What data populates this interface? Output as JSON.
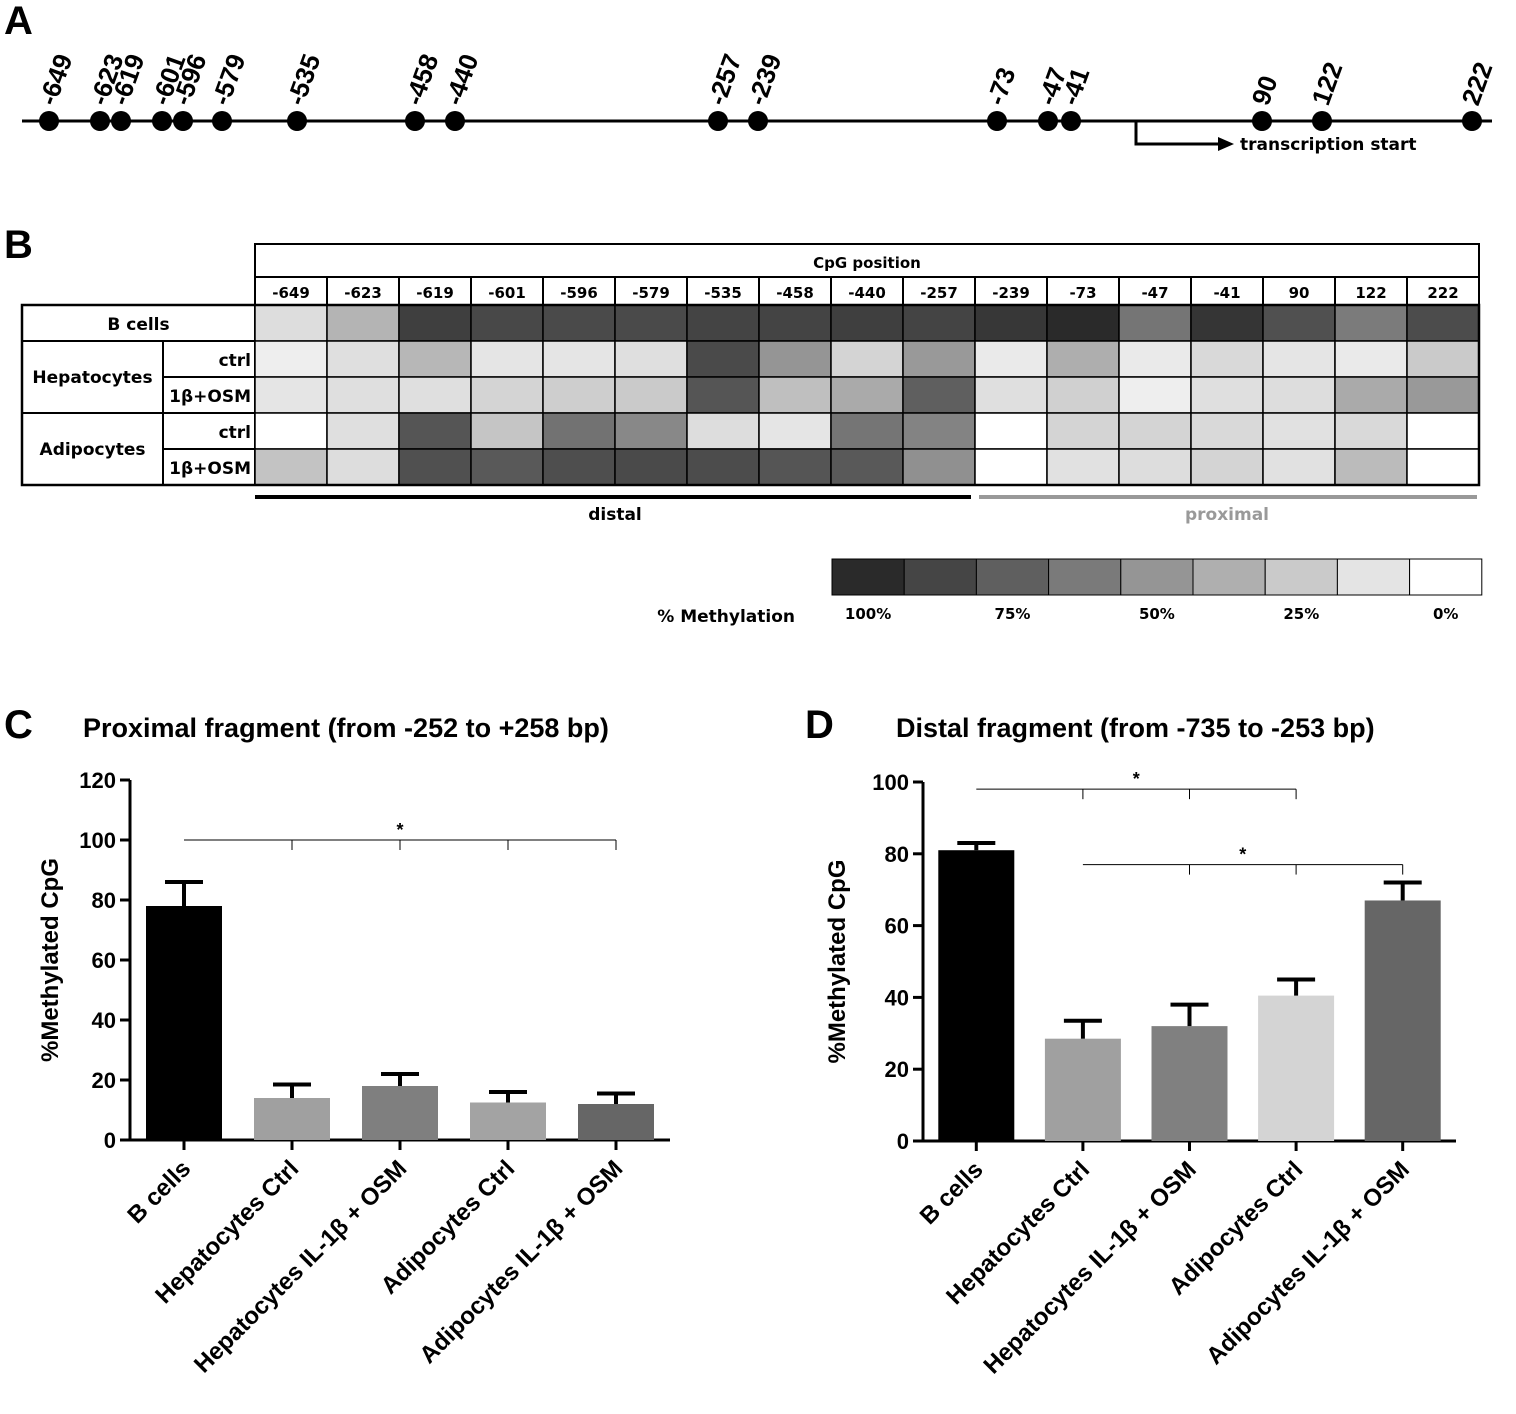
{
  "panel_a": {
    "letter": "A",
    "positions": [
      -649,
      -623,
      -619,
      -601,
      -596,
      -579,
      -535,
      -458,
      -440,
      -257,
      -239,
      -73,
      -47,
      -41,
      90,
      122,
      222
    ],
    "transcription_label": "transcription start"
  },
  "panel_b": {
    "letter": "B",
    "header": "CpG position",
    "columns": [
      "-649",
      "-623",
      "-619",
      "-601",
      "-596",
      "-579",
      "-535",
      "-458",
      "-440",
      "-257",
      "-239",
      "-73",
      "-47",
      "-41",
      "90",
      "122",
      "222"
    ],
    "groups": [
      {
        "label": "B cells",
        "rows": [
          {
            "label": "",
            "methylation": [
              16,
              35,
              90,
              86,
              85,
              85,
              88,
              88,
              90,
              88,
              94,
              100,
              65,
              95,
              82,
              62,
              84
            ]
          }
        ]
      },
      {
        "label": "Hepatocytes",
        "rows": [
          {
            "label": "ctrl",
            "methylation": [
              8,
              15,
              34,
              12,
              12,
              15,
              85,
              50,
              20,
              48,
              10,
              38,
              10,
              18,
              12,
              10,
              25
            ]
          },
          {
            "label": "1β+OSM",
            "methylation": [
              12,
              15,
              15,
              20,
              23,
              25,
              80,
              30,
              40,
              75,
              15,
              22,
              8,
              15,
              16,
              40,
              48
            ]
          }
        ]
      },
      {
        "label": "Adipocytes",
        "rows": [
          {
            "label": "ctrl",
            "methylation": [
              0,
              15,
              80,
              27,
              66,
              56,
              16,
              12,
              65,
              58,
              0,
              20,
              20,
              18,
              14,
              18,
              0
            ]
          },
          {
            "label": "1β+OSM",
            "methylation": [
              28,
              16,
              82,
              78,
              83,
              85,
              84,
              80,
              78,
              52,
              0,
              14,
              16,
              20,
              14,
              32,
              0
            ]
          }
        ]
      }
    ],
    "distal_label": "distal",
    "proximal_label": "proximal",
    "legend_title": "% Methylation",
    "legend_ticks": [
      "100%",
      "75%",
      "50%",
      "25%",
      "0%"
    ],
    "colors": {
      "proximal": "#999999",
      "distal": "#000000",
      "grid": "#000000"
    }
  },
  "chart_data": [
    {
      "letter": "C",
      "type": "bar",
      "title": "Proximal fragment (from -252 to +258 bp)",
      "ylabel": "%Methylated CpG",
      "xlabel": "",
      "ylim": [
        0,
        120
      ],
      "yticks": [
        "0",
        "20",
        "40",
        "60",
        "80",
        "100",
        "120"
      ],
      "categories": [
        "B cells",
        "Hepatocytes Ctrl",
        "Hepatocytes IL-1β + OSM",
        "Adipocytes Ctrl",
        "Adipocytes IL-1β + OSM"
      ],
      "values": [
        78,
        14,
        18,
        12.5,
        12
      ],
      "errors": [
        8,
        4.5,
        4,
        3.5,
        3.5
      ],
      "colors": [
        "#000000",
        "#a0a0a0",
        "#7f7f7f",
        "#a3a3a3",
        "#666666"
      ],
      "significance": [
        {
          "label": "*",
          "level": 100,
          "from": 0,
          "to": 4,
          "ticks": [
            1,
            2,
            3,
            4
          ]
        }
      ]
    },
    {
      "letter": "D",
      "type": "bar",
      "title": "Distal fragment (from -735 to -253 bp)",
      "ylabel": "%Methylated CpG",
      "xlabel": "",
      "ylim": [
        0,
        100
      ],
      "yticks": [
        "0",
        "20",
        "40",
        "60",
        "80",
        "100"
      ],
      "categories": [
        "B cells",
        "Hepatocytes Ctrl",
        "Hepatocytes IL-1β + OSM",
        "Adipocytes Ctrl",
        "Adipocytes IL-1β + OSM"
      ],
      "values": [
        81,
        28.5,
        32,
        40.5,
        67
      ],
      "errors": [
        2,
        5,
        6,
        4.5,
        5
      ],
      "colors": [
        "#000000",
        "#a0a0a0",
        "#808080",
        "#d4d4d4",
        "#666666"
      ],
      "significance": [
        {
          "label": "*",
          "level": 98,
          "from": 0,
          "to": 3,
          "ticks": [
            1,
            2,
            3
          ]
        },
        {
          "label": "*",
          "level": 77,
          "from": 1,
          "to": 4,
          "ticks": [
            2,
            3,
            4
          ]
        }
      ]
    }
  ]
}
